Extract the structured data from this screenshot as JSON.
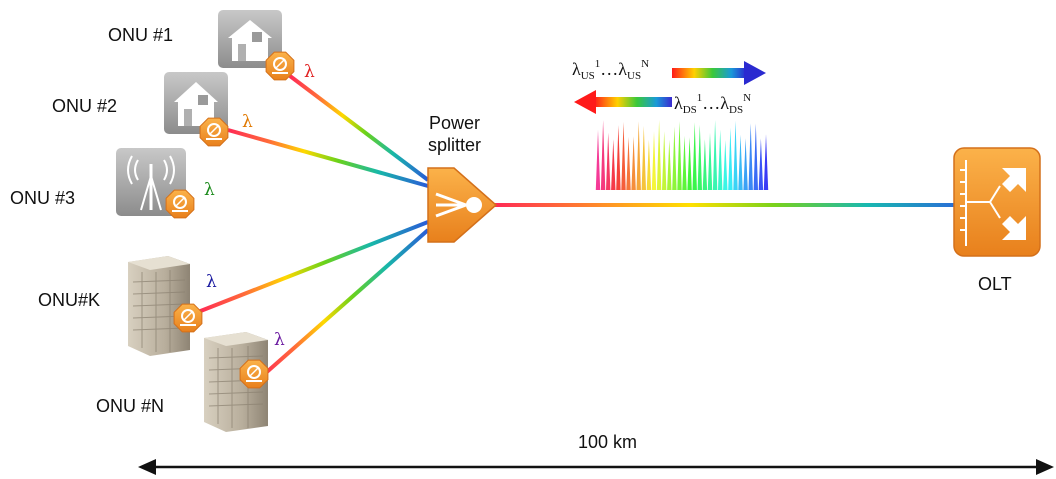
{
  "onus": [
    {
      "label": "ONU #1",
      "lambda": "λ",
      "lambda_color": "#e02020",
      "device": "house-icon"
    },
    {
      "label": "ONU #2",
      "lambda": "λ",
      "lambda_color": "#e07800",
      "device": "house-icon"
    },
    {
      "label": "ONU #3",
      "lambda": "λ",
      "lambda_color": "#1a8a1a",
      "device": "antenna-icon"
    },
    {
      "label": "ONU#K",
      "lambda": "λ",
      "lambda_color": "#1a1aa0",
      "device": "office-building-icon"
    },
    {
      "label": "ONU #N",
      "lambda": "λ",
      "lambda_color": "#6a1aa0",
      "device": "office-building-icon"
    }
  ],
  "splitter": {
    "line1": "Power",
    "line2": "splitter"
  },
  "olt": {
    "label": "OLT"
  },
  "upstream": {
    "lambda": "λ",
    "sub": "US",
    "sup_first": "1",
    "dots": "…",
    "sup_last": "N"
  },
  "downstream": {
    "lambda": "λ",
    "sub": "DS",
    "sup_first": "1",
    "dots": "…",
    "sup_last": "N"
  },
  "distance": {
    "label": "100 km"
  },
  "colors": {
    "device_orange": "#f0962a",
    "device_orange_dark": "#d4701a",
    "icon_gray": "#9a9a9a"
  }
}
